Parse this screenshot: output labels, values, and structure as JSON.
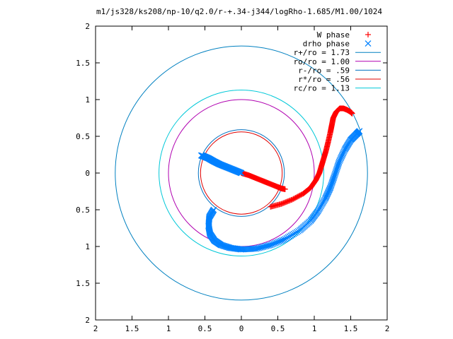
{
  "chart_data": {
    "type": "scatter",
    "title": "m1/js328/ks208/np-10/q2.0/r-+.34-j344/logRho-1.685/M1.00/1024",
    "xlim": [
      -2,
      2
    ],
    "ylim": [
      -2,
      2
    ],
    "x_tick_values": [
      -2,
      -1.5,
      -1,
      -0.5,
      0,
      0.5,
      1,
      1.5,
      2
    ],
    "x_tick_labels": [
      "2",
      "1.5",
      "1",
      "0.5",
      "0",
      "0.5",
      "1",
      "1.5",
      "2"
    ],
    "y_tick_values": [
      2,
      1.5,
      1,
      0.5,
      0,
      -0.5,
      -1,
      -1.5,
      -2
    ],
    "y_tick_labels": [
      "2",
      "1.5",
      "1",
      "0.5",
      "0",
      "0.5",
      "1",
      "1.5",
      "2"
    ],
    "grid": false,
    "legend_position": "top-right",
    "circles": [
      {
        "name": "r+/ro = 1.73",
        "radius": 1.73,
        "color": "#0080c0"
      },
      {
        "name": "ro/ro = 1.00",
        "radius": 1.0,
        "color": "#b000b0"
      },
      {
        "name": "r-/ro = .59",
        "radius": 0.59,
        "color": "#0070c0"
      },
      {
        "name": "r*/ro = .56",
        "radius": 0.56,
        "color": "#e00000"
      },
      {
        "name": "rc/ro = 1.13",
        "radius": 1.13,
        "color": "#00c8d8"
      }
    ],
    "series": [
      {
        "name": "W phase",
        "marker": "+",
        "color": "#ff0000",
        "x": [
          0.0,
          0.1,
          0.2,
          0.3,
          0.4,
          0.5,
          0.55,
          0.6
        ],
        "y": [
          0.0,
          -0.03,
          -0.07,
          -0.11,
          -0.15,
          -0.19,
          -0.21,
          -0.22
        ],
        "x2": [
          0.4,
          0.55,
          0.7,
          0.85,
          0.95,
          1.02,
          1.07,
          1.1,
          1.13,
          1.16,
          1.19,
          1.22,
          1.24,
          1.26,
          1.3,
          1.35,
          1.4,
          1.45,
          1.5,
          1.52
        ],
        "y2": [
          -0.46,
          -0.42,
          -0.36,
          -0.28,
          -0.2,
          -0.1,
          0.0,
          0.1,
          0.2,
          0.3,
          0.42,
          0.55,
          0.65,
          0.75,
          0.83,
          0.88,
          0.88,
          0.86,
          0.83,
          0.81
        ]
      },
      {
        "name": "drho phase",
        "marker": "x",
        "color": "#0080ff",
        "x": [
          0.0,
          -0.1,
          -0.2,
          -0.3,
          -0.38,
          -0.45,
          -0.52,
          -0.55
        ],
        "y": [
          0.0,
          0.04,
          0.08,
          0.12,
          0.16,
          0.2,
          0.23,
          0.24
        ],
        "x2": [
          -0.38,
          -0.44,
          -0.45,
          -0.43,
          -0.37,
          -0.28,
          -0.15,
          0.0,
          0.2,
          0.4,
          0.6,
          0.8,
          0.95,
          1.05,
          1.15,
          1.22,
          1.28,
          1.34,
          1.42,
          1.5,
          1.58,
          1.62
        ],
        "y2": [
          -0.5,
          -0.6,
          -0.72,
          -0.83,
          -0.92,
          -0.98,
          -1.02,
          -1.04,
          -1.03,
          -0.98,
          -0.9,
          -0.78,
          -0.65,
          -0.52,
          -0.35,
          -0.2,
          -0.03,
          0.15,
          0.32,
          0.45,
          0.53,
          0.57
        ]
      }
    ]
  }
}
